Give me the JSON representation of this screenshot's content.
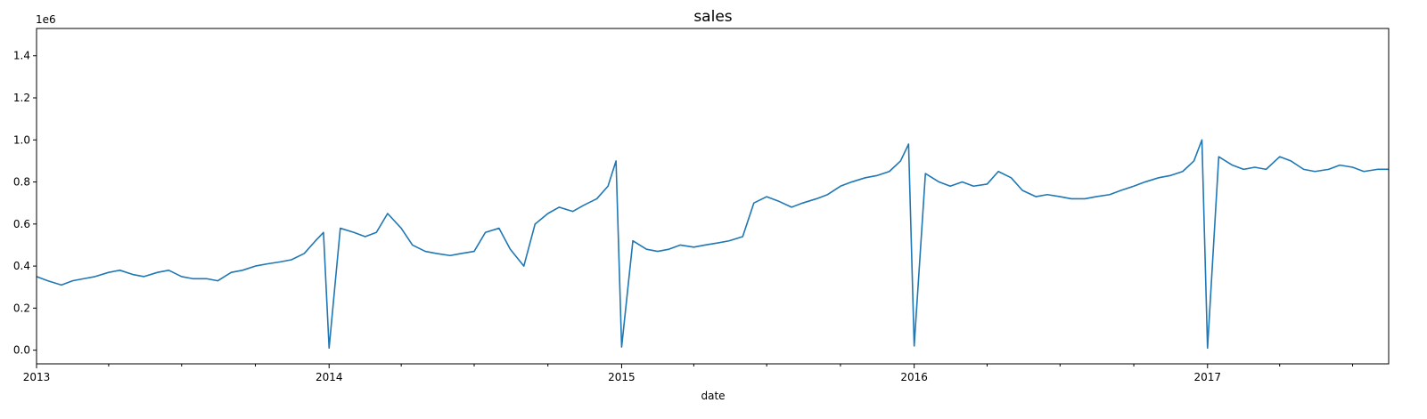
{
  "chart_data": {
    "type": "line",
    "title": "sales",
    "xlabel": "date",
    "ylabel": "",
    "y_offset_label": "1e6",
    "y_scale_factor": 1000000,
    "xlim": [
      "2013-01-01",
      "2017-08-15"
    ],
    "ylim": [
      -65000,
      1530000
    ],
    "yticks": [
      0,
      200000,
      400000,
      600000,
      800000,
      1000000,
      1200000,
      1400000
    ],
    "ytick_labels": [
      "0.0",
      "0.2",
      "0.4",
      "0.6",
      "0.8",
      "1.0",
      "1.2",
      "1.4"
    ],
    "xticks_major": [
      "2013-01-01",
      "2014-01-01",
      "2015-01-01",
      "2016-01-01",
      "2017-01-01"
    ],
    "xtick_labels": [
      "2013",
      "2014",
      "2015",
      "2016",
      "2017"
    ],
    "xticks_minor": [
      "2013-04-01",
      "2013-07-01",
      "2013-10-01",
      "2014-04-01",
      "2014-07-01",
      "2014-10-01",
      "2015-04-01",
      "2015-07-01",
      "2015-10-01",
      "2016-04-01",
      "2016-07-01",
      "2016-10-01",
      "2017-04-01",
      "2017-07-01"
    ],
    "grid": false,
    "legend": "none",
    "series_color": "#1f77b4",
    "series": [
      {
        "x": [
          "2013-01-01",
          "2013-01-15",
          "2013-02-01",
          "2013-02-15",
          "2013-03-01",
          "2013-03-15",
          "2013-04-01",
          "2013-04-15",
          "2013-05-01",
          "2013-05-15",
          "2013-06-01",
          "2013-06-15",
          "2013-07-01",
          "2013-07-15",
          "2013-08-01",
          "2013-08-15",
          "2013-09-01",
          "2013-09-15",
          "2013-10-01",
          "2013-10-15",
          "2013-11-01",
          "2013-11-15",
          "2013-12-01",
          "2013-12-15",
          "2013-12-25",
          "2014-01-01",
          "2014-01-15",
          "2014-02-01",
          "2014-02-15",
          "2014-03-01",
          "2014-03-15",
          "2014-04-01",
          "2014-04-15",
          "2014-05-01",
          "2014-05-15",
          "2014-06-01",
          "2014-06-15",
          "2014-07-01",
          "2014-07-15",
          "2014-08-01",
          "2014-08-15",
          "2014-09-01",
          "2014-09-15",
          "2014-10-01",
          "2014-10-15",
          "2014-11-01",
          "2014-11-15",
          "2014-12-01",
          "2014-12-15",
          "2014-12-25",
          "2015-01-01",
          "2015-01-15",
          "2015-02-01",
          "2015-02-15",
          "2015-03-01",
          "2015-03-15",
          "2015-04-01",
          "2015-04-15",
          "2015-05-01",
          "2015-05-15",
          "2015-06-01",
          "2015-06-15",
          "2015-07-01",
          "2015-07-15",
          "2015-08-01",
          "2015-08-15",
          "2015-09-01",
          "2015-09-15",
          "2015-10-01",
          "2015-10-15",
          "2015-11-01",
          "2015-11-15",
          "2015-12-01",
          "2015-12-15",
          "2015-12-25",
          "2016-01-01",
          "2016-01-15",
          "2016-02-01",
          "2016-02-15",
          "2016-03-01",
          "2016-03-15",
          "2016-04-01",
          "2016-04-15",
          "2016-05-01",
          "2016-05-15",
          "2016-06-01",
          "2016-06-15",
          "2016-07-01",
          "2016-07-15",
          "2016-08-01",
          "2016-08-15",
          "2016-09-01",
          "2016-09-15",
          "2016-10-01",
          "2016-10-15",
          "2016-11-01",
          "2016-11-15",
          "2016-12-01",
          "2016-12-15",
          "2016-12-25",
          "2017-01-01",
          "2017-01-15",
          "2017-02-01",
          "2017-02-15",
          "2017-03-01",
          "2017-03-15",
          "2017-04-01",
          "2017-04-15",
          "2017-05-01",
          "2017-05-15",
          "2017-06-01",
          "2017-06-15",
          "2017-07-01",
          "2017-07-15",
          "2017-08-01",
          "2017-08-15"
        ],
        "y": [
          350000,
          330000,
          310000,
          330000,
          340000,
          350000,
          370000,
          380000,
          360000,
          350000,
          370000,
          380000,
          350000,
          340000,
          340000,
          330000,
          370000,
          380000,
          400000,
          410000,
          420000,
          430000,
          460000,
          520000,
          560000,
          10000,
          580000,
          560000,
          540000,
          560000,
          650000,
          580000,
          500000,
          470000,
          460000,
          450000,
          460000,
          470000,
          560000,
          580000,
          480000,
          400000,
          600000,
          650000,
          680000,
          660000,
          690000,
          720000,
          780000,
          900000,
          15000,
          520000,
          480000,
          470000,
          480000,
          500000,
          490000,
          500000,
          510000,
          520000,
          540000,
          700000,
          730000,
          710000,
          680000,
          700000,
          720000,
          740000,
          780000,
          800000,
          820000,
          830000,
          850000,
          900000,
          980000,
          20000,
          840000,
          800000,
          780000,
          800000,
          780000,
          790000,
          850000,
          820000,
          760000,
          730000,
          740000,
          730000,
          720000,
          720000,
          730000,
          740000,
          760000,
          780000,
          800000,
          820000,
          830000,
          850000,
          900000,
          1000000,
          10000,
          920000,
          880000,
          860000,
          870000,
          860000,
          920000,
          900000,
          860000,
          850000,
          860000,
          880000,
          870000,
          850000,
          860000,
          860000
        ]
      }
    ]
  }
}
